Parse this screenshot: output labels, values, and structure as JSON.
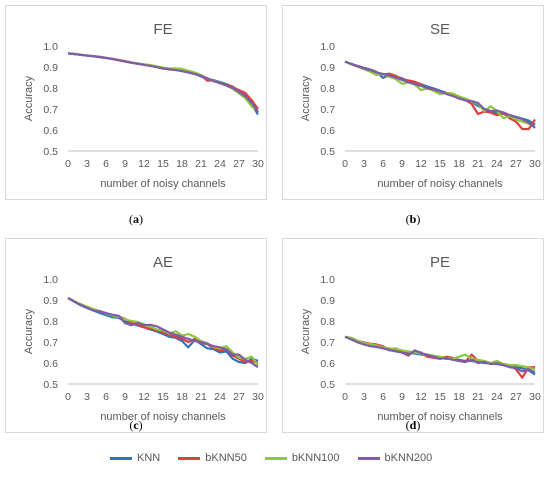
{
  "chart_data": [
    {
      "type": "line",
      "title": "FE",
      "xlabel": "number of noisy channels",
      "ylabel": "Accuracy",
      "x_ticks": [
        0,
        3,
        6,
        9,
        12,
        15,
        18,
        21,
        24,
        27,
        30
      ],
      "y_ticks": [
        "0.5",
        "0.6",
        "0.7",
        "0.8",
        "0.9",
        "1.0"
      ],
      "ylim": [
        0.5,
        1.0
      ],
      "xlim": [
        0,
        30
      ],
      "grid": false,
      "caption_label": "a",
      "x": [
        0,
        1,
        2,
        3,
        4,
        5,
        6,
        7,
        8,
        9,
        10,
        11,
        12,
        13,
        14,
        15,
        16,
        17,
        18,
        19,
        20,
        21,
        22,
        23,
        24,
        25,
        26,
        27,
        28,
        29,
        30
      ],
      "series": [
        {
          "name": "KNN",
          "values": [
            0.965,
            0.962,
            0.958,
            0.955,
            0.952,
            0.948,
            0.944,
            0.939,
            0.933,
            0.927,
            0.922,
            0.917,
            0.912,
            0.907,
            0.901,
            0.895,
            0.89,
            0.888,
            0.885,
            0.877,
            0.868,
            0.855,
            0.844,
            0.837,
            0.828,
            0.818,
            0.806,
            0.785,
            0.762,
            0.722,
            0.674
          ]
        },
        {
          "name": "bKNN50",
          "values": [
            0.965,
            0.962,
            0.958,
            0.955,
            0.952,
            0.948,
            0.944,
            0.939,
            0.934,
            0.928,
            0.922,
            0.915,
            0.912,
            0.909,
            0.9,
            0.893,
            0.888,
            0.887,
            0.884,
            0.879,
            0.866,
            0.86,
            0.835,
            0.836,
            0.822,
            0.816,
            0.804,
            0.79,
            0.776,
            0.742,
            0.7
          ]
        },
        {
          "name": "bKNN100",
          "values": [
            0.965,
            0.963,
            0.959,
            0.955,
            0.951,
            0.947,
            0.943,
            0.938,
            0.932,
            0.926,
            0.921,
            0.916,
            0.913,
            0.909,
            0.904,
            0.897,
            0.893,
            0.894,
            0.891,
            0.882,
            0.874,
            0.862,
            0.845,
            0.834,
            0.825,
            0.811,
            0.796,
            0.774,
            0.752,
            0.712,
            0.69
          ]
        },
        {
          "name": "bKNN200",
          "values": [
            0.965,
            0.962,
            0.958,
            0.954,
            0.951,
            0.947,
            0.943,
            0.938,
            0.932,
            0.926,
            0.92,
            0.915,
            0.91,
            0.905,
            0.899,
            0.893,
            0.889,
            0.885,
            0.88,
            0.874,
            0.866,
            0.858,
            0.846,
            0.832,
            0.824,
            0.812,
            0.8,
            0.782,
            0.76,
            0.73,
            0.685
          ]
        }
      ]
    },
    {
      "type": "line",
      "title": "SE",
      "xlabel": "number of noisy channels",
      "ylabel": "Accuracy",
      "x_ticks": [
        0,
        3,
        6,
        9,
        12,
        15,
        18,
        21,
        24,
        27,
        30
      ],
      "y_ticks": [
        "0.5",
        "0.6",
        "0.7",
        "0.8",
        "0.9",
        "1.0"
      ],
      "ylim": [
        0.5,
        1.0
      ],
      "xlim": [
        0,
        30
      ],
      "grid": false,
      "caption_label": "b",
      "x": [
        0,
        1,
        2,
        3,
        4,
        5,
        6,
        7,
        8,
        9,
        10,
        11,
        12,
        13,
        14,
        15,
        16,
        17,
        18,
        19,
        20,
        21,
        22,
        23,
        24,
        25,
        26,
        27,
        28,
        29,
        30
      ],
      "series": [
        {
          "name": "KNN",
          "values": [
            0.925,
            0.915,
            0.905,
            0.896,
            0.888,
            0.876,
            0.848,
            0.862,
            0.855,
            0.846,
            0.833,
            0.825,
            0.818,
            0.807,
            0.798,
            0.787,
            0.777,
            0.768,
            0.757,
            0.746,
            0.733,
            0.715,
            0.7,
            0.69,
            0.682,
            0.676,
            0.67,
            0.663,
            0.654,
            0.645,
            0.625
          ]
        },
        {
          "name": "bKNN50",
          "values": [
            0.925,
            0.914,
            0.904,
            0.894,
            0.886,
            0.875,
            0.865,
            0.868,
            0.858,
            0.84,
            0.836,
            0.83,
            0.817,
            0.796,
            0.794,
            0.783,
            0.776,
            0.766,
            0.75,
            0.744,
            0.724,
            0.676,
            0.688,
            0.683,
            0.67,
            0.682,
            0.655,
            0.64,
            0.605,
            0.605,
            0.65
          ]
        },
        {
          "name": "bKNN100",
          "values": [
            0.926,
            0.913,
            0.902,
            0.89,
            0.877,
            0.862,
            0.868,
            0.854,
            0.843,
            0.82,
            0.826,
            0.817,
            0.79,
            0.798,
            0.786,
            0.771,
            0.776,
            0.774,
            0.76,
            0.75,
            0.735,
            0.725,
            0.69,
            0.713,
            0.69,
            0.656,
            0.666,
            0.65,
            0.64,
            0.63,
            0.615
          ]
        },
        {
          "name": "bKNN200",
          "values": [
            0.926,
            0.914,
            0.903,
            0.893,
            0.885,
            0.874,
            0.866,
            0.86,
            0.85,
            0.838,
            0.828,
            0.818,
            0.81,
            0.8,
            0.792,
            0.784,
            0.772,
            0.762,
            0.751,
            0.741,
            0.738,
            0.729,
            0.7,
            0.69,
            0.693,
            0.684,
            0.671,
            0.661,
            0.652,
            0.635,
            0.61
          ]
        }
      ]
    },
    {
      "type": "line",
      "title": "AE",
      "xlabel": "number of noisy channels",
      "ylabel": "Accuracy",
      "x_ticks": [
        0,
        3,
        6,
        9,
        12,
        15,
        18,
        21,
        24,
        27,
        30
      ],
      "y_ticks": [
        "0.5",
        "0.6",
        "0.7",
        "0.8",
        "0.9",
        "1.0"
      ],
      "ylim": [
        0.5,
        1.0
      ],
      "xlim": [
        0,
        30
      ],
      "grid": false,
      "caption_label": "c",
      "x": [
        0,
        1,
        2,
        3,
        4,
        5,
        6,
        7,
        8,
        9,
        10,
        11,
        12,
        13,
        14,
        15,
        16,
        17,
        18,
        19,
        20,
        21,
        22,
        23,
        24,
        25,
        26,
        27,
        28,
        29,
        30
      ],
      "series": [
        {
          "name": "KNN",
          "values": [
            0.91,
            0.892,
            0.875,
            0.862,
            0.85,
            0.838,
            0.828,
            0.818,
            0.815,
            0.8,
            0.79,
            0.778,
            0.77,
            0.76,
            0.75,
            0.738,
            0.725,
            0.72,
            0.705,
            0.675,
            0.71,
            0.69,
            0.67,
            0.665,
            0.65,
            0.655,
            0.62,
            0.605,
            0.6,
            0.62,
            0.61
          ]
        },
        {
          "name": "bKNN50",
          "values": [
            0.91,
            0.893,
            0.878,
            0.866,
            0.855,
            0.848,
            0.836,
            0.828,
            0.822,
            0.81,
            0.792,
            0.782,
            0.77,
            0.763,
            0.756,
            0.745,
            0.735,
            0.725,
            0.715,
            0.7,
            0.715,
            0.695,
            0.69,
            0.67,
            0.66,
            0.665,
            0.635,
            0.62,
            0.605,
            0.61,
            0.6
          ]
        },
        {
          "name": "bKNN100",
          "values": [
            0.91,
            0.895,
            0.88,
            0.868,
            0.857,
            0.846,
            0.836,
            0.826,
            0.818,
            0.808,
            0.8,
            0.795,
            0.785,
            0.772,
            0.76,
            0.755,
            0.74,
            0.752,
            0.73,
            0.738,
            0.725,
            0.705,
            0.695,
            0.675,
            0.67,
            0.68,
            0.65,
            0.625,
            0.62,
            0.63,
            0.59
          ]
        },
        {
          "name": "bKNN200",
          "values": [
            0.91,
            0.892,
            0.876,
            0.863,
            0.85,
            0.845,
            0.838,
            0.83,
            0.825,
            0.79,
            0.78,
            0.79,
            0.78,
            0.782,
            0.775,
            0.76,
            0.745,
            0.735,
            0.725,
            0.715,
            0.705,
            0.7,
            0.69,
            0.68,
            0.675,
            0.665,
            0.64,
            0.64,
            0.615,
            0.6,
            0.58
          ]
        }
      ]
    },
    {
      "type": "line",
      "title": "PE",
      "xlabel": "number of noisy channels",
      "ylabel": "Accuracy",
      "x_ticks": [
        0,
        3,
        6,
        9,
        12,
        15,
        18,
        21,
        24,
        27,
        30
      ],
      "y_ticks": [
        "0.5",
        "0.6",
        "0.7",
        "0.8",
        "0.9",
        "1.0"
      ],
      "ylim": [
        0.5,
        1.0
      ],
      "xlim": [
        0,
        30
      ],
      "grid": false,
      "caption_label": "d",
      "x": [
        0,
        1,
        2,
        3,
        4,
        5,
        6,
        7,
        8,
        9,
        10,
        11,
        12,
        13,
        14,
        15,
        16,
        17,
        18,
        19,
        20,
        21,
        22,
        23,
        24,
        25,
        26,
        27,
        28,
        29,
        30
      ],
      "series": [
        {
          "name": "KNN",
          "values": [
            0.725,
            0.715,
            0.7,
            0.69,
            0.685,
            0.68,
            0.67,
            0.668,
            0.66,
            0.655,
            0.65,
            0.645,
            0.64,
            0.64,
            0.63,
            0.625,
            0.62,
            0.62,
            0.615,
            0.61,
            0.61,
            0.605,
            0.6,
            0.598,
            0.595,
            0.59,
            0.585,
            0.58,
            0.575,
            0.565,
            0.545
          ]
        },
        {
          "name": "bKNN50",
          "values": [
            0.725,
            0.718,
            0.705,
            0.698,
            0.692,
            0.688,
            0.68,
            0.66,
            0.67,
            0.65,
            0.64,
            0.655,
            0.65,
            0.63,
            0.625,
            0.62,
            0.63,
            0.625,
            0.61,
            0.605,
            0.64,
            0.61,
            0.605,
            0.6,
            0.6,
            0.595,
            0.59,
            0.57,
            0.53,
            0.58,
            0.58
          ]
        },
        {
          "name": "bKNN100",
          "values": [
            0.725,
            0.72,
            0.706,
            0.695,
            0.69,
            0.684,
            0.675,
            0.67,
            0.668,
            0.66,
            0.655,
            0.65,
            0.645,
            0.64,
            0.635,
            0.63,
            0.625,
            0.62,
            0.63,
            0.64,
            0.62,
            0.615,
            0.61,
            0.6,
            0.61,
            0.595,
            0.59,
            0.59,
            0.585,
            0.58,
            0.57
          ]
        },
        {
          "name": "bKNN200",
          "values": [
            0.725,
            0.712,
            0.698,
            0.688,
            0.68,
            0.676,
            0.67,
            0.662,
            0.655,
            0.65,
            0.635,
            0.66,
            0.648,
            0.638,
            0.63,
            0.62,
            0.625,
            0.615,
            0.61,
            0.605,
            0.615,
            0.6,
            0.605,
            0.595,
            0.598,
            0.59,
            0.58,
            0.575,
            0.56,
            0.57,
            0.555
          ]
        }
      ]
    }
  ],
  "legend": {
    "placement": "bottom",
    "items": [
      {
        "name": "KNN",
        "color": "#2E75B6"
      },
      {
        "name": "bKNN50",
        "color": "#D9413F"
      },
      {
        "name": "bKNN100",
        "color": "#8DC63F"
      },
      {
        "name": "bKNN200",
        "color": "#7F5CA8"
      }
    ]
  }
}
